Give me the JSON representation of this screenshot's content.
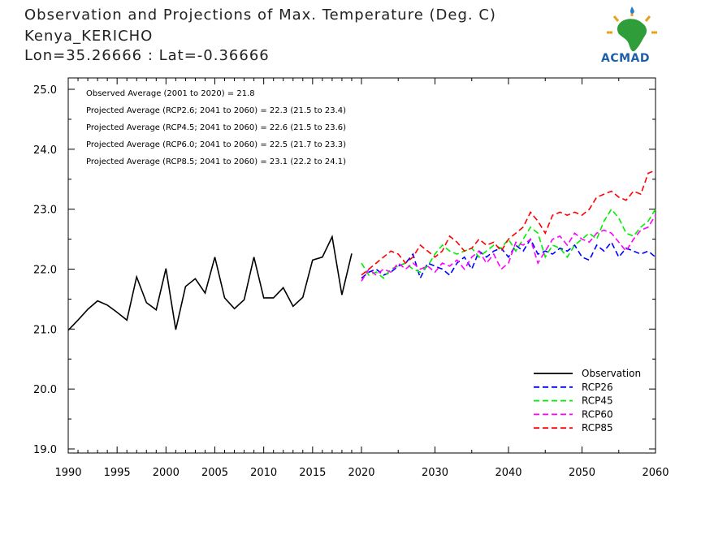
{
  "header": {
    "title": "Observation and Projections of Max. Temperature (Deg. C)",
    "location": "Kenya_KERICHO",
    "coords": "Lon=35.26666 : Lat=-0.36666"
  },
  "logo": {
    "text": "ACMAD"
  },
  "annotations": [
    "Observed Average (2001 to 2020) = 21.8",
    "Projected Average (RCP2.6; 2041 to 2060) = 22.3 (21.5 to 23.4)",
    "Projected Average (RCP4.5; 2041 to 2060) = 22.6 (21.5 to 23.6)",
    "Projected Average (RCP6.0; 2041 to 2060) = 22.5 (21.7 to 23.3)",
    "Projected Average (RCP8.5; 2041 to 2060) = 23.1 (22.2 to 24.1)"
  ],
  "chart_data": {
    "type": "line",
    "ylim": [
      19.0,
      25.0
    ],
    "yticks": [
      "19.0",
      "20.0",
      "21.0",
      "22.0",
      "23.0",
      "24.0",
      "25.0"
    ],
    "xticks_hist": [
      "1990",
      "1995",
      "2000",
      "2005",
      "2010",
      "2015",
      "2020"
    ],
    "xticks_proj": [
      "2030",
      "2040",
      "2050",
      "2060"
    ],
    "legend_position": "bottom-right",
    "series": [
      {
        "name": "Observation",
        "color": "#000000",
        "dashed": false,
        "x": [
          1990,
          1991,
          1992,
          1993,
          1994,
          1995,
          1996,
          1997,
          1998,
          1999,
          2000,
          2001,
          2002,
          2003,
          2004,
          2005,
          2006,
          2007,
          2008,
          2009,
          2010,
          2011,
          2012,
          2013,
          2014,
          2015,
          2016,
          2017,
          2018,
          2019
        ],
        "values": [
          20.98,
          21.15,
          21.33,
          21.47,
          21.4,
          21.28,
          21.15,
          21.87,
          21.44,
          21.32,
          22.01,
          20.99,
          21.71,
          21.84,
          21.6,
          22.2,
          21.52,
          21.34,
          21.49,
          22.2,
          21.52,
          21.52,
          21.69,
          21.38,
          21.53,
          22.15,
          22.2,
          22.54,
          21.57,
          22.26
        ]
      },
      {
        "name": "RCP26",
        "color": "#0000ff",
        "dashed": true,
        "x0": 2020,
        "values": [
          21.85,
          21.95,
          22.0,
          21.9,
          21.95,
          22.05,
          22.1,
          22.25,
          21.85,
          22.1,
          22.05,
          22.0,
          21.9,
          22.1,
          22.2,
          22.0,
          22.3,
          22.2,
          22.3,
          22.35,
          22.2,
          22.4,
          22.3,
          22.5,
          22.25,
          22.3,
          22.25,
          22.35,
          22.3,
          22.4,
          22.2,
          22.15,
          22.4,
          22.3,
          22.45,
          22.2,
          22.35,
          22.3,
          22.25,
          22.3,
          22.2
        ]
      },
      {
        "name": "RCP45",
        "color": "#00ee00",
        "dashed": true,
        "x0": 2020,
        "values": [
          22.1,
          21.9,
          21.95,
          21.85,
          22.0,
          22.05,
          22.1,
          22.0,
          21.95,
          22.05,
          22.25,
          22.4,
          22.3,
          22.25,
          22.3,
          22.35,
          22.2,
          22.3,
          22.4,
          22.35,
          22.5,
          22.3,
          22.5,
          22.7,
          22.6,
          22.2,
          22.4,
          22.35,
          22.2,
          22.4,
          22.5,
          22.6,
          22.5,
          22.8,
          23.0,
          22.85,
          22.6,
          22.55,
          22.7,
          22.8,
          23.0
        ]
      },
      {
        "name": "RCP60",
        "color": "#ff00ff",
        "dashed": true,
        "x0": 2020,
        "values": [
          21.8,
          22.0,
          21.9,
          22.0,
          21.95,
          22.1,
          22.0,
          22.1,
          22.0,
          22.05,
          21.95,
          22.1,
          22.05,
          22.15,
          22.0,
          22.2,
          22.3,
          22.1,
          22.25,
          22.0,
          22.1,
          22.45,
          22.4,
          22.5,
          22.1,
          22.3,
          22.5,
          22.55,
          22.4,
          22.6,
          22.5,
          22.45,
          22.6,
          22.65,
          22.6,
          22.45,
          22.3,
          22.5,
          22.65,
          22.7,
          22.9
        ]
      },
      {
        "name": "RCP85",
        "color": "#ff0000",
        "dashed": true,
        "x0": 2020,
        "values": [
          21.9,
          22.0,
          22.1,
          22.2,
          22.3,
          22.25,
          22.1,
          22.2,
          22.4,
          22.3,
          22.2,
          22.3,
          22.55,
          22.45,
          22.3,
          22.35,
          22.5,
          22.4,
          22.45,
          22.3,
          22.5,
          22.6,
          22.7,
          22.95,
          22.8,
          22.6,
          22.9,
          22.95,
          22.9,
          22.95,
          22.9,
          23.0,
          23.2,
          23.25,
          23.3,
          23.2,
          23.15,
          23.3,
          23.25,
          23.6,
          23.65
        ]
      }
    ]
  }
}
